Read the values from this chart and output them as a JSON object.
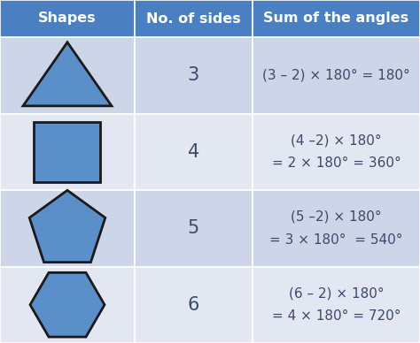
{
  "header_bg": "#4a7fc1",
  "header_text_color": "#ffffff",
  "row_bg_odd": "#cdd5e8",
  "row_bg_even": "#e2e7f2",
  "shape_fill": "#5b8fc9",
  "shape_edge": "#1a1a1a",
  "col_headers": [
    "Shapes",
    "No. of sides",
    "Sum of the angles"
  ],
  "rows": [
    {
      "sides": 3,
      "sides_label": "3",
      "formula_line1": "(3 – 2) × 180° = 180°",
      "formula_line2": ""
    },
    {
      "sides": 4,
      "sides_label": "4",
      "formula_line1": "(4 –2) × 180°",
      "formula_line2": "= 2 × 180° = 360°"
    },
    {
      "sides": 5,
      "sides_label": "5",
      "formula_line1": "(5 –2) × 180°",
      "formula_line2": "= 3 × 180°  = 540°"
    },
    {
      "sides": 6,
      "sides_label": "6",
      "formula_line1": "(6 – 2) × 180°",
      "formula_line2": "= 4 × 180° = 720°"
    }
  ],
  "header_fontsize": 11.5,
  "cell_fontsize": 15,
  "formula_fontsize": 11,
  "text_color": "#3a4a6b"
}
